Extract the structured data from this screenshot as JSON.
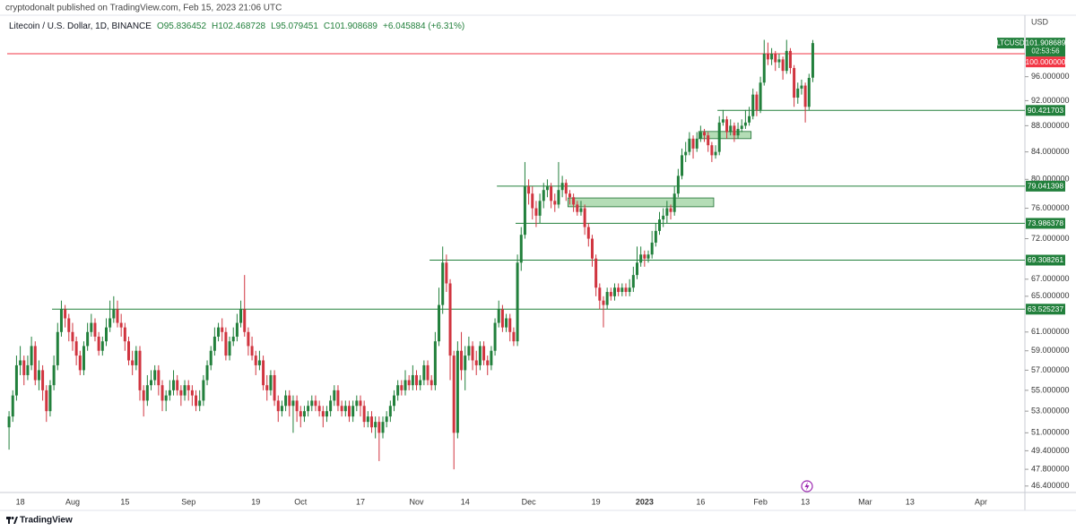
{
  "header": {
    "publisher": "cryptodonalt published on TradingView.com, Feb 15, 2023 21:06 UTC",
    "symbol": "Litecoin / U.S. Dollar, 1D, BINANCE",
    "ohlc": [
      "O95.836452",
      "H102.468728",
      "L95.079451",
      "C101.908689"
    ],
    "change": "+6.045884 (+6.31%)"
  },
  "footer": {
    "brand": "TradingView"
  },
  "chart_data": {
    "type": "candlestick",
    "categories": [
      null,
      null,
      null,
      "18",
      null,
      null,
      null,
      null,
      null,
      null,
      null,
      null,
      null,
      null,
      null,
      null,
      null,
      "Aug",
      null,
      null,
      null,
      null,
      null,
      null,
      null,
      null,
      null,
      null,
      null,
      null,
      null,
      "15",
      null,
      null,
      null,
      null,
      null,
      null,
      null,
      null,
      null,
      null,
      null,
      null,
      null,
      null,
      null,
      null,
      "Sep",
      null,
      null,
      null,
      null,
      null,
      null,
      null,
      null,
      null,
      null,
      null,
      null,
      null,
      null,
      null,
      null,
      null,
      "19",
      null,
      null,
      null,
      null,
      null,
      null,
      null,
      null,
      null,
      null,
      null,
      "Oct",
      null,
      null,
      null,
      null,
      null,
      null,
      null,
      null,
      null,
      null,
      null,
      null,
      null,
      null,
      null,
      "17",
      null,
      null,
      null,
      null,
      null,
      null,
      null,
      null,
      null,
      null,
      null,
      null,
      null,
      null,
      "Nov",
      null,
      null,
      null,
      null,
      null,
      null,
      null,
      null,
      null,
      null,
      null,
      null,
      "14",
      null,
      null,
      null,
      null,
      null,
      null,
      null,
      null,
      null,
      null,
      null,
      null,
      null,
      null,
      null,
      null,
      "Dec",
      null,
      null,
      null,
      null,
      null,
      null,
      null,
      null,
      null,
      null,
      null,
      null,
      null,
      null,
      null,
      null,
      null,
      "19",
      null,
      null,
      null,
      null,
      null,
      null,
      null,
      null,
      null,
      null,
      null,
      null,
      "2023",
      null,
      null,
      null,
      null,
      null,
      null,
      null,
      null,
      null,
      null,
      null,
      null,
      null,
      null,
      "16",
      null,
      null,
      null,
      null,
      null,
      null,
      null,
      null,
      null,
      null,
      null,
      null,
      null,
      null,
      null,
      "Feb",
      null,
      null,
      null,
      null,
      null,
      null,
      null,
      null,
      null,
      null,
      null,
      "13",
      null,
      null,
      null,
      null,
      null,
      null,
      null,
      null,
      null,
      null,
      null,
      null,
      null,
      null,
      null,
      "Mar",
      null,
      null,
      null,
      null,
      null,
      null,
      null,
      null,
      null,
      null,
      null,
      "13",
      null,
      null,
      null,
      null,
      null,
      null,
      null,
      null,
      null,
      null,
      null,
      null,
      null,
      null,
      null,
      null,
      null,
      null,
      "Apr",
      null,
      null,
      null,
      null,
      null,
      null,
      null,
      null,
      null,
      null,
      null
    ],
    "open": [
      51.5,
      52.5,
      54.5,
      57.5,
      58.0,
      56.5,
      57.5,
      59.5,
      56.0,
      57.0,
      55.0,
      53.0,
      55.5,
      57.5,
      61.0,
      63.5,
      62.5,
      61.0,
      60.0,
      58.5,
      57.0,
      59.5,
      61.0,
      62.0,
      60.5,
      59.0,
      60.0,
      61.5,
      62.5,
      63.5,
      62.0,
      61.5,
      60.0,
      58.0,
      57.5,
      59.0,
      55.0,
      54.0,
      55.5,
      56.0,
      57.0,
      55.5,
      54.0,
      54.5,
      55.0,
      56.0,
      55.0,
      54.5,
      55.5,
      55.0,
      54.5,
      53.5,
      54.0,
      56.0,
      57.5,
      59.0,
      60.5,
      61.5,
      61.0,
      58.5,
      60.0,
      60.5,
      62.0,
      63.5,
      61.0,
      59.5,
      58.5,
      57.5,
      58.0,
      55.5,
      55.0,
      56.5,
      54.0,
      53.0,
      53.5,
      54.5,
      53.5,
      54.0,
      53.0,
      52.5,
      53.0,
      53.5,
      54.0,
      53.5,
      53.0,
      52.5,
      53.0,
      54.0,
      55.0,
      53.5,
      53.0,
      53.5,
      52.5,
      53.5,
      54.0,
      53.5,
      52.0,
      52.5,
      51.5,
      52.0,
      51.0,
      52.0,
      52.5,
      53.5,
      54.5,
      55.5,
      55.0,
      56.0,
      55.5,
      56.5,
      55.5,
      56.0,
      57.5,
      56.0,
      55.5,
      60.0,
      64.0,
      69.0,
      66.5,
      58.5,
      51.0,
      59.0,
      57.0,
      58.5,
      59.5,
      58.0,
      57.5,
      59.5,
      58.0,
      57.5,
      59.0,
      62.0,
      63.5,
      61.5,
      62.5,
      61.0,
      60.0,
      69.0,
      72.5,
      79.0,
      78.0,
      76.0,
      75.0,
      77.0,
      78.5,
      79.0,
      77.0,
      76.5,
      78.5,
      79.5,
      78.0,
      77.5,
      76.5,
      75.5,
      76.0,
      73.5,
      72.0,
      69.5,
      66.0,
      64.5,
      64.0,
      65.5,
      65.0,
      66.0,
      65.5,
      66.0,
      65.5,
      66.0,
      67.5,
      69.0,
      70.0,
      69.5,
      70.0,
      71.5,
      73.0,
      74.5,
      75.0,
      76.0,
      75.5,
      78.0,
      80.5,
      83.5,
      84.0,
      86.0,
      84.5,
      86.0,
      87.0,
      86.5,
      85.0,
      83.5,
      84.0,
      88.5,
      89.0,
      87.0,
      88.0,
      86.5,
      87.5,
      88.0,
      88.5,
      89.5,
      93.0,
      90.5,
      95.0,
      100.0,
      99.0,
      100.0,
      98.5,
      99.0,
      97.0,
      100.5,
      97.5,
      92.5,
      94.0,
      94.5,
      91.0,
      95.836452,
      null,
      null,
      null,
      null,
      null,
      null,
      null,
      null,
      null,
      null,
      null,
      null,
      null,
      null,
      null,
      null,
      null,
      null,
      null,
      null,
      null,
      null,
      null,
      null,
      null,
      null,
      null,
      null,
      null,
      null,
      null,
      null,
      null,
      null,
      null,
      null,
      null,
      null,
      null,
      null,
      null,
      null,
      null,
      null,
      null,
      null,
      null,
      null,
      null,
      null,
      null,
      null,
      null,
      null,
      null,
      null
    ],
    "high": [
      53.0,
      55.0,
      58.5,
      59.5,
      58.5,
      58.5,
      60.5,
      60.0,
      58.0,
      57.5,
      55.5,
      56.0,
      58.5,
      62.0,
      64.5,
      64.0,
      63.0,
      62.0,
      60.5,
      59.0,
      60.0,
      62.0,
      63.0,
      62.5,
      61.0,
      60.5,
      62.5,
      64.5,
      65.0,
      64.5,
      63.0,
      62.0,
      60.5,
      59.0,
      59.5,
      59.5,
      55.5,
      56.5,
      57.0,
      57.5,
      57.5,
      56.0,
      55.0,
      56.0,
      57.0,
      56.5,
      55.5,
      56.0,
      56.0,
      55.5,
      55.0,
      55.0,
      56.5,
      58.0,
      59.5,
      61.5,
      62.0,
      62.5,
      61.5,
      60.5,
      61.5,
      63.0,
      64.5,
      67.5,
      61.5,
      60.5,
      59.0,
      59.0,
      58.5,
      56.5,
      57.0,
      57.0,
      54.5,
      54.0,
      55.0,
      55.0,
      54.5,
      54.5,
      53.5,
      53.5,
      54.0,
      54.5,
      54.5,
      54.0,
      53.5,
      53.5,
      54.5,
      55.5,
      55.5,
      54.0,
      54.0,
      54.0,
      54.0,
      54.5,
      54.5,
      54.0,
      53.0,
      53.0,
      52.5,
      52.5,
      52.5,
      53.0,
      54.0,
      55.0,
      56.0,
      56.0,
      57.0,
      56.5,
      57.5,
      57.0,
      56.5,
      58.0,
      58.0,
      56.5,
      61.0,
      66.0,
      71.0,
      70.0,
      67.0,
      59.0,
      60.0,
      61.0,
      59.5,
      60.5,
      60.0,
      59.0,
      60.0,
      60.0,
      58.5,
      59.5,
      62.5,
      64.5,
      64.0,
      63.0,
      63.0,
      61.5,
      70.0,
      73.5,
      82.5,
      80.0,
      79.0,
      77.0,
      78.0,
      79.5,
      80.0,
      79.5,
      78.0,
      82.5,
      80.5,
      80.0,
      78.5,
      78.0,
      77.0,
      77.0,
      76.5,
      74.0,
      72.5,
      70.0,
      66.5,
      65.0,
      66.0,
      66.0,
      66.5,
      66.5,
      66.5,
      66.5,
      67.0,
      68.5,
      71.0,
      71.0,
      70.5,
      70.5,
      73.0,
      74.0,
      75.5,
      76.0,
      77.0,
      76.5,
      79.0,
      81.5,
      84.5,
      85.5,
      87.0,
      86.5,
      87.0,
      88.0,
      87.5,
      87.0,
      85.5,
      85.0,
      89.5,
      90.5,
      89.5,
      89.0,
      88.5,
      88.5,
      89.0,
      90.5,
      91.0,
      94.0,
      93.5,
      96.0,
      102.5,
      102.0,
      101.0,
      100.5,
      100.0,
      99.5,
      102.5,
      101.0,
      98.0,
      95.0,
      95.5,
      95.0,
      96.5,
      102.468728,
      null,
      null,
      null,
      null,
      null,
      null,
      null,
      null,
      null,
      null,
      null,
      null,
      null,
      null,
      null,
      null,
      null,
      null,
      null,
      null,
      null,
      null,
      null,
      null,
      null,
      null,
      null,
      null,
      null,
      null,
      null,
      null,
      null,
      null,
      null,
      null,
      null,
      null,
      null,
      null,
      null,
      null,
      null,
      null,
      null,
      null,
      null,
      null,
      null,
      null,
      null,
      null,
      null,
      null,
      null,
      null
    ],
    "low": [
      49.5,
      52.0,
      54.0,
      56.5,
      55.5,
      56.0,
      57.0,
      55.5,
      55.0,
      54.0,
      52.0,
      52.5,
      55.0,
      57.0,
      60.5,
      61.5,
      60.0,
      59.0,
      57.5,
      56.5,
      56.5,
      59.0,
      60.5,
      60.0,
      58.5,
      58.5,
      59.5,
      61.0,
      62.0,
      61.5,
      60.5,
      59.0,
      57.5,
      56.5,
      57.0,
      54.0,
      52.5,
      53.5,
      55.0,
      55.5,
      54.5,
      53.0,
      53.0,
      54.0,
      54.5,
      54.5,
      53.5,
      54.0,
      54.0,
      53.5,
      53.0,
      53.0,
      53.5,
      55.5,
      57.0,
      58.5,
      60.0,
      60.0,
      58.0,
      58.0,
      59.5,
      60.0,
      61.5,
      60.5,
      58.5,
      58.0,
      56.5,
      57.0,
      55.0,
      54.0,
      54.5,
      53.5,
      52.0,
      52.5,
      53.0,
      52.5,
      51.0,
      52.0,
      51.5,
      52.0,
      52.5,
      53.0,
      53.0,
      52.5,
      51.5,
      52.0,
      52.5,
      53.5,
      53.0,
      52.5,
      52.5,
      52.0,
      52.0,
      53.0,
      52.5,
      51.5,
      51.5,
      51.0,
      50.5,
      48.5,
      50.5,
      51.5,
      52.0,
      53.0,
      54.0,
      54.5,
      54.5,
      55.0,
      55.0,
      55.0,
      55.0,
      55.5,
      55.5,
      55.0,
      55.0,
      59.5,
      63.0,
      65.5,
      56.0,
      47.8,
      50.5,
      56.0,
      55.0,
      58.0,
      57.0,
      56.5,
      57.0,
      57.5,
      56.5,
      57.0,
      58.5,
      61.5,
      61.0,
      61.0,
      60.0,
      59.5,
      59.5,
      68.0,
      72.0,
      76.5,
      74.5,
      73.5,
      74.0,
      76.0,
      77.5,
      76.0,
      75.5,
      76.0,
      77.5,
      77.0,
      76.5,
      75.5,
      75.0,
      75.0,
      72.5,
      71.0,
      68.5,
      65.0,
      63.5,
      61.5,
      63.5,
      64.5,
      64.5,
      65.0,
      65.0,
      65.0,
      65.0,
      65.5,
      67.0,
      68.5,
      68.5,
      69.0,
      69.5,
      71.0,
      72.5,
      73.5,
      74.0,
      74.5,
      75.0,
      77.5,
      80.0,
      82.5,
      83.5,
      83.0,
      84.0,
      85.5,
      85.5,
      84.0,
      82.5,
      83.0,
      83.5,
      88.0,
      86.0,
      86.5,
      85.5,
      86.0,
      87.0,
      87.5,
      88.0,
      89.0,
      89.5,
      90.0,
      94.5,
      98.0,
      98.0,
      97.0,
      97.5,
      95.5,
      96.5,
      96.5,
      91.0,
      91.5,
      93.0,
      88.5,
      90.5,
      95.079451,
      null,
      null,
      null,
      null,
      null,
      null,
      null,
      null,
      null,
      null,
      null,
      null,
      null,
      null,
      null,
      null,
      null,
      null,
      null,
      null,
      null,
      null,
      null,
      null,
      null,
      null,
      null,
      null,
      null,
      null,
      null,
      null,
      null,
      null,
      null,
      null,
      null,
      null,
      null,
      null,
      null,
      null,
      null,
      null,
      null,
      null,
      null,
      null,
      null,
      null,
      null,
      null,
      null,
      null,
      null,
      null
    ],
    "close": [
      52.5,
      54.5,
      57.5,
      58.0,
      56.5,
      57.5,
      59.5,
      56.0,
      57.0,
      55.0,
      53.0,
      55.5,
      57.5,
      61.0,
      63.5,
      62.5,
      61.0,
      60.0,
      58.5,
      57.0,
      59.5,
      61.0,
      62.0,
      60.5,
      59.0,
      60.0,
      61.5,
      62.5,
      63.5,
      62.0,
      61.5,
      60.0,
      58.0,
      57.5,
      59.0,
      55.0,
      54.0,
      55.5,
      56.0,
      57.0,
      55.5,
      54.0,
      54.5,
      55.0,
      56.0,
      55.0,
      54.5,
      55.5,
      55.0,
      54.5,
      53.5,
      54.0,
      56.0,
      57.5,
      59.0,
      60.5,
      61.5,
      61.0,
      58.5,
      60.0,
      60.5,
      62.0,
      63.5,
      61.0,
      59.5,
      58.5,
      57.5,
      58.0,
      55.5,
      55.0,
      56.5,
      54.0,
      53.0,
      53.5,
      54.5,
      53.5,
      54.0,
      53.0,
      52.5,
      53.0,
      53.5,
      54.0,
      53.5,
      53.0,
      52.5,
      53.0,
      54.0,
      55.0,
      53.5,
      53.0,
      53.5,
      52.5,
      53.5,
      54.0,
      53.5,
      52.0,
      52.5,
      51.5,
      52.0,
      51.0,
      52.0,
      52.5,
      53.5,
      54.5,
      55.5,
      55.0,
      56.0,
      55.5,
      56.5,
      55.5,
      56.0,
      57.5,
      56.0,
      55.5,
      60.0,
      64.0,
      69.0,
      66.5,
      58.5,
      51.0,
      59.0,
      57.0,
      58.5,
      59.5,
      58.0,
      57.5,
      59.5,
      58.0,
      57.5,
      59.0,
      62.0,
      63.5,
      61.5,
      62.5,
      61.0,
      60.0,
      69.0,
      72.5,
      79.0,
      78.0,
      76.0,
      75.0,
      77.0,
      78.5,
      79.0,
      77.0,
      76.5,
      78.5,
      79.5,
      78.0,
      77.5,
      76.5,
      75.5,
      76.0,
      73.5,
      72.0,
      69.5,
      66.0,
      64.5,
      64.0,
      65.5,
      65.0,
      66.0,
      65.5,
      66.0,
      65.5,
      66.0,
      67.5,
      69.0,
      70.0,
      69.5,
      70.0,
      71.5,
      73.0,
      74.5,
      75.0,
      76.0,
      75.5,
      78.0,
      80.5,
      83.5,
      84.0,
      86.0,
      84.5,
      86.0,
      87.0,
      86.5,
      85.0,
      83.5,
      84.0,
      88.5,
      89.0,
      87.0,
      88.0,
      86.5,
      87.5,
      88.0,
      88.5,
      89.5,
      93.0,
      90.5,
      95.0,
      100.0,
      99.0,
      100.0,
      98.5,
      99.0,
      97.0,
      100.5,
      97.5,
      92.5,
      94.0,
      94.5,
      91.0,
      95.8,
      101.908689,
      null,
      null,
      null,
      null,
      null,
      null,
      null,
      null,
      null,
      null,
      null,
      null,
      null,
      null,
      null,
      null,
      null,
      null,
      null,
      null,
      null,
      null,
      null,
      null,
      null,
      null,
      null,
      null,
      null,
      null,
      null,
      null,
      null,
      null,
      null,
      null,
      null,
      null,
      null,
      null,
      null,
      null,
      null,
      null,
      null,
      null,
      null,
      null,
      null,
      null,
      null,
      null,
      null,
      null,
      null,
      null
    ],
    "up_color": "#22803c",
    "down_color": "#d0343f",
    "log_scale": true,
    "grid": false,
    "ylim": [
      45.87,
      107.08
    ],
    "yticks": [
      {
        "value": 46.4,
        "label": "46.400000"
      },
      {
        "value": 47.8,
        "label": "47.800000"
      },
      {
        "value": 49.4,
        "label": "49.400000"
      },
      {
        "value": 51,
        "label": "51.000000"
      },
      {
        "value": 53,
        "label": "53.000000"
      },
      {
        "value": 55,
        "label": "55.000000"
      },
      {
        "value": 57,
        "label": "57.000000"
      },
      {
        "value": 59,
        "label": "59.000000"
      },
      {
        "value": 61,
        "label": "61.000000"
      },
      {
        "value": 65,
        "label": "65.000000"
      },
      {
        "value": 67,
        "label": "67.000000"
      },
      {
        "value": 72,
        "label": "72.000000"
      },
      {
        "value": 76,
        "label": "76.000000"
      },
      {
        "value": 80,
        "label": "80.000000"
      },
      {
        "value": 84,
        "label": "84.000000"
      },
      {
        "value": 88,
        "label": "88.000000"
      },
      {
        "value": 92,
        "label": "92.000000"
      },
      {
        "value": 96,
        "label": "96.000000"
      }
    ],
    "currency": "USD",
    "symbol": "LTCUSD",
    "last_price": 101.908689,
    "countdown": "02:53:56",
    "levels": [
      {
        "price": {
          "value": 100,
          "label": "100.000000"
        },
        "start": 0,
        "color": "#f23645"
      },
      {
        "price": 90.421703,
        "start": 190,
        "color": "#22803c"
      },
      {
        "price": 79.041398,
        "start": 131,
        "color": "#22803c"
      },
      {
        "price": 73.986378,
        "start": 136,
        "color": "#22803c"
      },
      {
        "price": 69.308261,
        "start": 113,
        "color": "#22803c"
      },
      {
        "price": 63.525237,
        "start": 12,
        "color": "#22803c"
      }
    ],
    "zones": [
      {
        "start": 150,
        "end": 188,
        "low": 76.2,
        "high": 77.4
      },
      {
        "start": 185,
        "end": 198,
        "low": 86.0,
        "high": 87.1
      }
    ]
  }
}
